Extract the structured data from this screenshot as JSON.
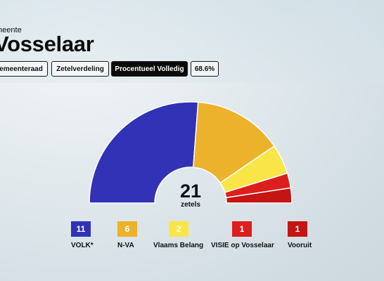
{
  "header": {
    "municipality_label": "meente",
    "title": "Vosselaar"
  },
  "tabs": [
    {
      "label": "emeenteraad",
      "active": false
    },
    {
      "label": "Zetelverdeling",
      "active": false
    },
    {
      "label": "Procentueel Volledig",
      "active": true
    },
    {
      "label": "68.6%",
      "active": false
    }
  ],
  "chart_data": {
    "type": "pie",
    "subtype": "parliament-semicircle",
    "total": "21",
    "total_label": "zetels",
    "series": [
      {
        "name": "VOLK*",
        "value": 11,
        "color": "#3132b6"
      },
      {
        "name": "N-VA",
        "value": 6,
        "color": "#ecb22c"
      },
      {
        "name": "Vlaams Belang",
        "value": 2,
        "color": "#f9e547"
      },
      {
        "name": "VISIE op Vosselaar",
        "value": 1,
        "color": "#dd1e1e"
      },
      {
        "name": "Vooruit",
        "value": 1,
        "color": "#c41414"
      }
    ]
  }
}
